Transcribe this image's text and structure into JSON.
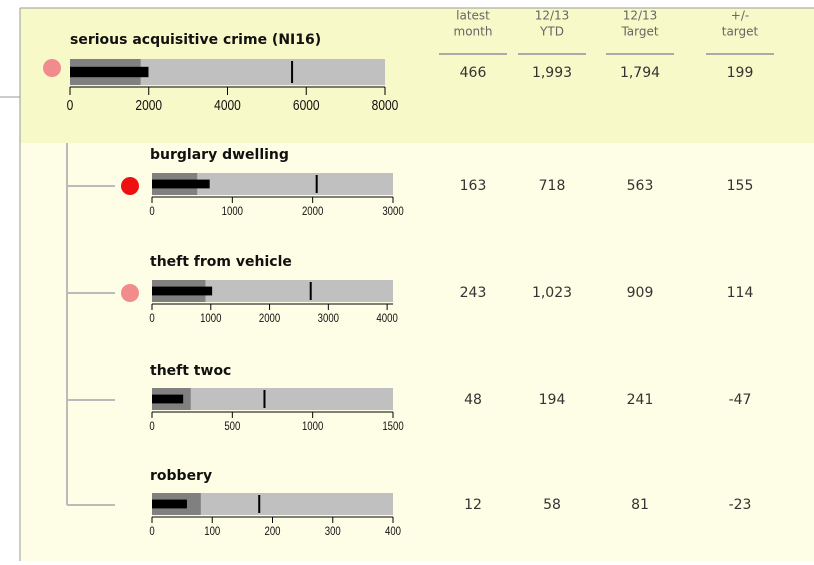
{
  "columns": [
    [
      "latest",
      "month"
    ],
    [
      "12/13",
      "YTD"
    ],
    [
      "12/13",
      "Target"
    ],
    [
      "+/-",
      "target"
    ]
  ],
  "items": [
    {
      "name": "serious acquisitive crime (NI16)",
      "status_color": "#f28b8b",
      "bullet": {
        "xlim": [
          0,
          8000
        ],
        "xticks": [
          0,
          2000,
          4000,
          6000,
          8000
        ],
        "band": 1794,
        "value": 1993,
        "marker": 5640
      },
      "cells": [
        "466",
        "1,993",
        "1,794",
        "199"
      ]
    },
    {
      "name": "burglary dwelling",
      "status_color": "#ee1111",
      "bullet": {
        "xlim": [
          0,
          3000
        ],
        "xticks": [
          0,
          1000,
          2000,
          3000
        ],
        "band": 563,
        "value": 718,
        "marker": 2050
      },
      "cells": [
        "163",
        "718",
        "563",
        "155"
      ]
    },
    {
      "name": "theft from vehicle",
      "status_color": "#f28b8b",
      "bullet": {
        "xlim": [
          0,
          4100
        ],
        "xticks": [
          0,
          1000,
          2000,
          3000,
          4000
        ],
        "band": 909,
        "value": 1023,
        "marker": 2700
      },
      "cells": [
        "243",
        "1,023",
        "909",
        "114"
      ]
    },
    {
      "name": "theft twoc",
      "status_color": null,
      "bullet": {
        "xlim": [
          0,
          1500
        ],
        "xticks": [
          0,
          500,
          1000,
          1500
        ],
        "band": 241,
        "value": 194,
        "marker": 700
      },
      "cells": [
        "48",
        "194",
        "241",
        "-47"
      ]
    },
    {
      "name": "robbery",
      "status_color": null,
      "bullet": {
        "xlim": [
          0,
          400
        ],
        "xticks": [
          0,
          100,
          200,
          300,
          400
        ],
        "band": 81,
        "value": 58,
        "marker": 178
      },
      "cells": [
        "12",
        "58",
        "81",
        "-23"
      ]
    }
  ]
}
